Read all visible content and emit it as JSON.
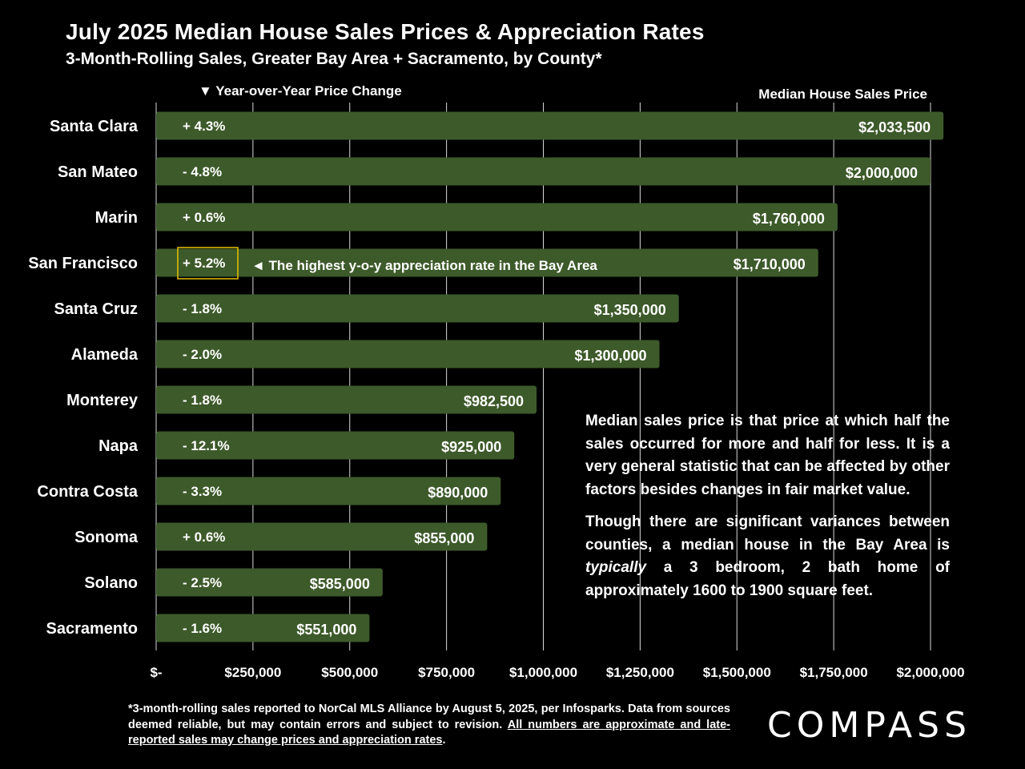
{
  "header": {
    "title": "July 2025 Median House Sales Prices & Appreciation Rates",
    "subtitle": "3-Month-Rolling Sales, Greater Bay Area + Sacramento, by County*",
    "yoy_label": "▼ Year-over-Year Price Change",
    "price_label": "Median House Sales Price"
  },
  "chart_data": {
    "type": "bar",
    "orientation": "horizontal",
    "categories": [
      "Santa Clara",
      "San Mateo",
      "Marin",
      "San Francisco",
      "Santa Cruz",
      "Alameda",
      "Monterey",
      "Napa",
      "Contra Costa",
      "Sonoma",
      "Solano",
      "Sacramento"
    ],
    "values": [
      2033500,
      2000000,
      1760000,
      1710000,
      1350000,
      1300000,
      982500,
      925000,
      890000,
      855000,
      585000,
      551000
    ],
    "value_labels": [
      "$2,033,500",
      "$2,000,000",
      "$1,760,000",
      "$1,710,000",
      "$1,350,000",
      "$1,300,000",
      "$982,500",
      "$925,000",
      "$890,000",
      "$855,000",
      "$585,000",
      "$551,000"
    ],
    "yoy_change_pct": [
      4.3,
      -4.8,
      0.6,
      5.2,
      -1.8,
      -2.0,
      -1.8,
      -12.1,
      -3.3,
      0.6,
      -2.5,
      -1.6
    ],
    "yoy_labels": [
      "+ 4.3%",
      "- 4.8%",
      "+ 0.6%",
      "+ 5.2%",
      "- 1.8%",
      "- 2.0%",
      "- 1.8%",
      "- 12.1%",
      "- 3.3%",
      "+ 0.6%",
      "- 2.5%",
      "- 1.6%"
    ],
    "highlight_index": 3,
    "annotation": "◄ The highest y-o-y appreciation rate in the Bay Area",
    "xlim": [
      0,
      2000000
    ],
    "x_ticks": [
      0,
      250000,
      500000,
      750000,
      1000000,
      1250000,
      1500000,
      1750000,
      2000000
    ],
    "x_tick_labels": [
      "$-",
      "$250,000",
      "$500,000",
      "$750,000",
      "$1,000,000",
      "$1,250,000",
      "$1,500,000",
      "$1,750,000",
      "$2,000,000"
    ],
    "grid": "vertical",
    "bar_color": "#3d5a2a",
    "gridline_color": "#d9d9d9",
    "highlight_color": "#e5c100"
  },
  "note": {
    "p1": "Median sales price is that price at which half the sales occurred for more and half for less. It is a very general statistic that can be affected by other factors besides changes in fair market value.",
    "p2_before": "Though there are significant variances between counties, a median house in the Bay Area is ",
    "p2_italic": "typically",
    "p2_after": " a 3 bedroom, 2 bath home of approximately 1600 to 1900 square feet."
  },
  "footer": {
    "text": "*3-month-rolling sales reported to NorCal MLS Alliance by August 5, 2025, per Infosparks. Data from sources deemed reliable, but may contain errors and subject to revision. ",
    "underlined": "All numbers are approximate and late-reported sales may change prices and appreciation rates",
    "end": "."
  },
  "logo": "COMPASS"
}
